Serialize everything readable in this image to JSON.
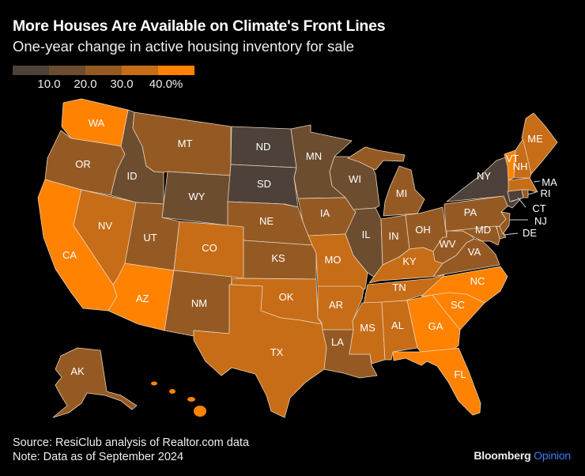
{
  "title": "More Houses Are Available on Climate's Front Lines",
  "subtitle": "One-year change in active housing inventory for sale",
  "legend": {
    "colors": [
      "#4e4139",
      "#6c4d30",
      "#955a24",
      "#c76d17",
      "#ff8200"
    ],
    "labels": [
      "10.0",
      "20.0",
      "30.0",
      "40.0%"
    ]
  },
  "map_data": {
    "type": "choropleth",
    "states": [
      {
        "code": "WA",
        "bin": 5
      },
      {
        "code": "OR",
        "bin": 3
      },
      {
        "code": "CA",
        "bin": 5
      },
      {
        "code": "NV",
        "bin": 4
      },
      {
        "code": "ID",
        "bin": 2
      },
      {
        "code": "MT",
        "bin": 3
      },
      {
        "code": "WY",
        "bin": 2
      },
      {
        "code": "UT",
        "bin": 3
      },
      {
        "code": "CO",
        "bin": 4
      },
      {
        "code": "AZ",
        "bin": 5
      },
      {
        "code": "NM",
        "bin": 3
      },
      {
        "code": "ND",
        "bin": 1
      },
      {
        "code": "SD",
        "bin": 1
      },
      {
        "code": "NE",
        "bin": 3
      },
      {
        "code": "KS",
        "bin": 3
      },
      {
        "code": "OK",
        "bin": 4
      },
      {
        "code": "TX",
        "bin": 4
      },
      {
        "code": "MN",
        "bin": 2
      },
      {
        "code": "IA",
        "bin": 3
      },
      {
        "code": "MO",
        "bin": 4
      },
      {
        "code": "AR",
        "bin": 4
      },
      {
        "code": "LA",
        "bin": 3
      },
      {
        "code": "WI",
        "bin": 2
      },
      {
        "code": "IL",
        "bin": 2
      },
      {
        "code": "MI",
        "bin": 3
      },
      {
        "code": "IN",
        "bin": 3
      },
      {
        "code": "OH",
        "bin": 3
      },
      {
        "code": "KY",
        "bin": 4
      },
      {
        "code": "TN",
        "bin": 4
      },
      {
        "code": "MS",
        "bin": 4
      },
      {
        "code": "AL",
        "bin": 4
      },
      {
        "code": "GA",
        "bin": 5
      },
      {
        "code": "FL",
        "bin": 5
      },
      {
        "code": "SC",
        "bin": 5
      },
      {
        "code": "NC",
        "bin": 5
      },
      {
        "code": "VA",
        "bin": 3
      },
      {
        "code": "WV",
        "bin": 3
      },
      {
        "code": "PA",
        "bin": 3
      },
      {
        "code": "NY",
        "bin": 1
      },
      {
        "code": "MD",
        "bin": 3
      },
      {
        "code": "DE",
        "bin": 3
      },
      {
        "code": "NJ",
        "bin": 3
      },
      {
        "code": "CT",
        "bin": 1
      },
      {
        "code": "RI",
        "bin": 3
      },
      {
        "code": "MA",
        "bin": 4
      },
      {
        "code": "VT",
        "bin": 5
      },
      {
        "code": "NH",
        "bin": 4
      },
      {
        "code": "ME",
        "bin": 4
      },
      {
        "code": "AK",
        "bin": 3
      },
      {
        "code": "HI",
        "bin": 5
      }
    ]
  },
  "footer": {
    "source": "Source: ResiClub analysis of Realtor.com data",
    "note": "Note: Data as of September 2024",
    "brand": "Bloomberg",
    "brand_accent": "Opinion"
  }
}
